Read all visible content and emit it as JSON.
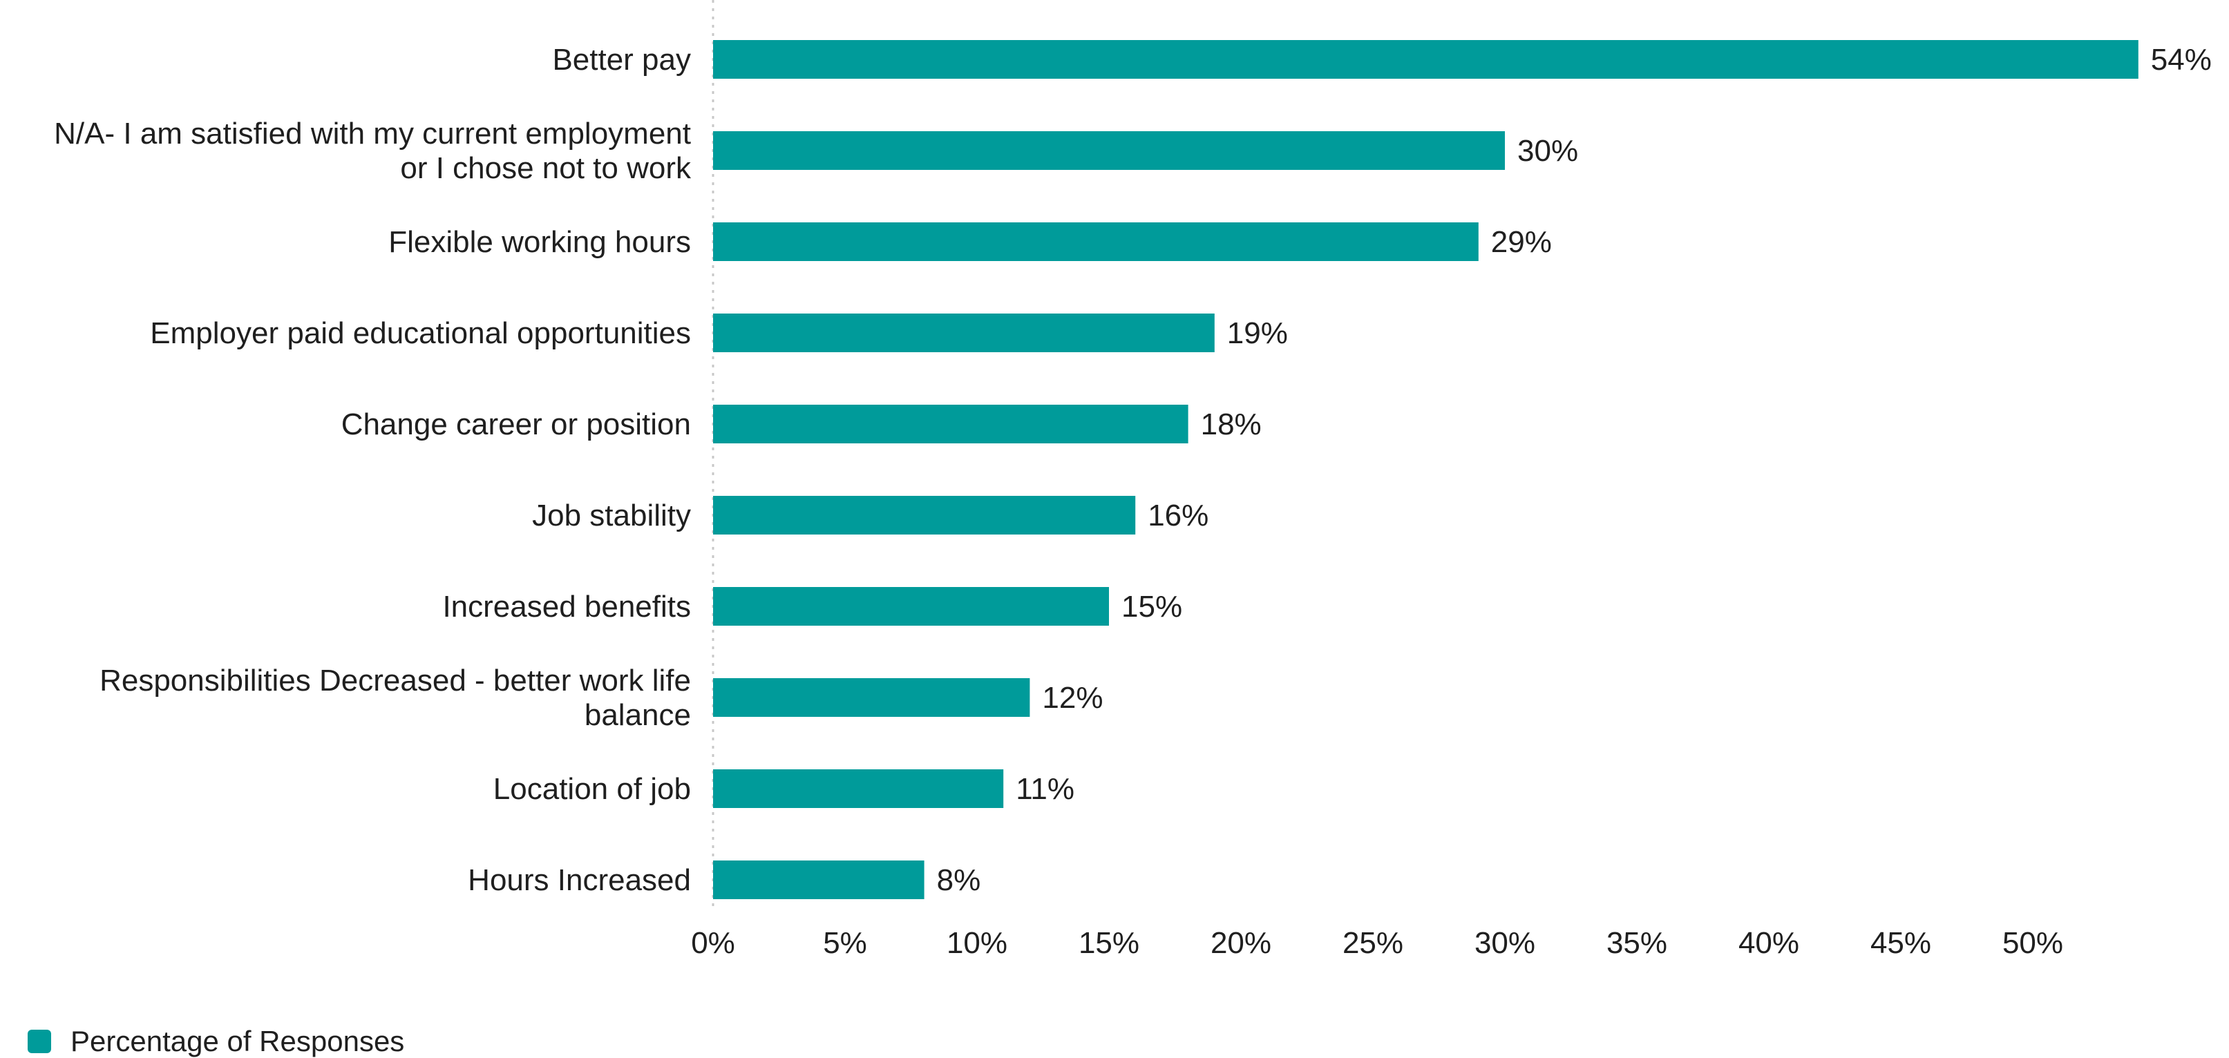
{
  "chart_data": {
    "type": "bar",
    "orientation": "horizontal",
    "categories": [
      [
        "Better pay"
      ],
      [
        "N/A- I am satisfied with my current employment",
        "or I chose not to work"
      ],
      [
        "Flexible working hours"
      ],
      [
        "Employer paid educational opportunities"
      ],
      [
        "Change career or position"
      ],
      [
        "Job stability"
      ],
      [
        "Increased benefits"
      ],
      [
        "Responsibilities Decreased - better work life",
        "balance"
      ],
      [
        "Location of job"
      ],
      [
        "Hours Increased"
      ]
    ],
    "series": [
      {
        "name": "Percentage of Responses",
        "color": "#009B9A",
        "values": [
          54,
          30,
          29,
          19,
          18,
          16,
          15,
          12,
          11,
          8
        ],
        "labels": [
          "54%",
          "30%",
          "29%",
          "19%",
          "18%",
          "16%",
          "15%",
          "12%",
          "11%",
          "8%"
        ]
      }
    ],
    "xlim": [
      0,
      55
    ],
    "xticks": [
      0,
      5,
      10,
      15,
      20,
      25,
      30,
      35,
      40,
      45,
      50
    ],
    "xtick_labels": [
      "0%",
      "5%",
      "10%",
      "15%",
      "20%",
      "25%",
      "30%",
      "35%",
      "40%",
      "45%",
      "50%"
    ],
    "gridlines": false,
    "zero_line": "dotted",
    "legend_position": "bottom-left"
  }
}
